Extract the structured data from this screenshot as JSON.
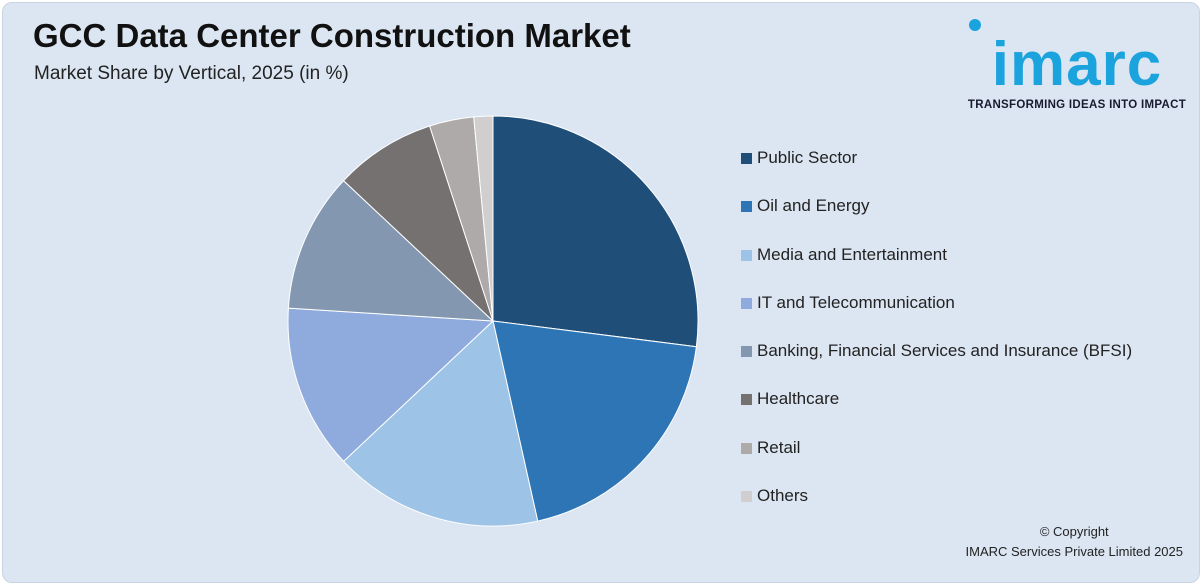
{
  "header": {
    "title": "GCC Data Center Construction Market",
    "subtitle": "Market Share by Vertical, 2025 (in %)"
  },
  "brand": {
    "logo_text": "imarc",
    "tagline": "TRANSFORMING IDEAS INTO IMPACT",
    "color": "#1aa3dd"
  },
  "chart_data": {
    "type": "pie",
    "title": "GCC Data Center Construction Market",
    "subtitle": "Market Share by Vertical, 2025 (in %)",
    "legend_position": "right",
    "categories": [
      "Public Sector",
      "Oil and Energy",
      "Media and Entertainment",
      "IT and Telecommunication",
      "Banking, Financial Services and Insurance (BFSI)",
      "Healthcare",
      "Retail",
      "Others"
    ],
    "values": [
      27.0,
      19.5,
      16.5,
      13.0,
      11.0,
      8.0,
      3.5,
      1.5
    ],
    "colors": [
      "#1f4e79",
      "#2e75b6",
      "#9dc3e6",
      "#8faadc",
      "#8497b0",
      "#767171",
      "#aeaaaa",
      "#d0cece"
    ]
  },
  "footer": {
    "copyright_line1": "© Copyright",
    "copyright_line2": "IMARC Services Private Limited 2025"
  }
}
